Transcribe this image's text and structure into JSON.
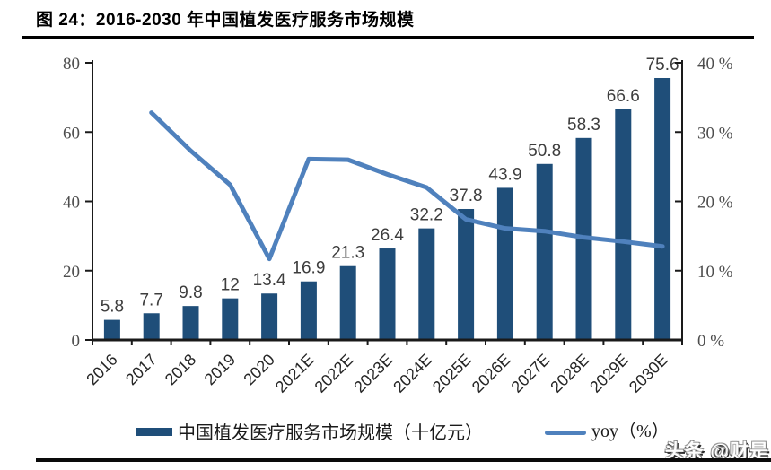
{
  "title": "图 24：2016-2030 年中国植发医疗服务市场规模",
  "colors": {
    "bar": "#1F4E79",
    "line": "#4F81BD",
    "axis": "#1A1A1A",
    "axis_label": "#4D4D4D",
    "x_label": "#262626",
    "data_label": "#3D3D3D"
  },
  "chart_data": {
    "type": "bar",
    "combo": "bar+line",
    "title": "2016-2030 年中国植发医疗服务市场规模",
    "categories": [
      "2016",
      "2017",
      "2018",
      "2019",
      "2020",
      "2021E",
      "2022E",
      "2023E",
      "2024E",
      "2025E",
      "2026E",
      "2027E",
      "2028E",
      "2029E",
      "2030E"
    ],
    "series": [
      {
        "name": "中国植发医疗服务市场规模（十亿元）",
        "type": "bar",
        "axis": "left",
        "values": [
          5.8,
          7.7,
          9.8,
          12,
          13.4,
          16.9,
          21.3,
          26.4,
          32.2,
          37.8,
          43.9,
          50.8,
          58.3,
          66.6,
          75.6
        ],
        "labels": [
          "5.8",
          "7.7",
          "9.8",
          "12",
          "13.4",
          "16.9",
          "21.3",
          "26.4",
          "32.2",
          "37.8",
          "43.9",
          "50.8",
          "58.3",
          "66.6",
          "75.6"
        ]
      },
      {
        "name": "yoy（%）",
        "type": "line",
        "axis": "right",
        "values": [
          null,
          32.8,
          27.3,
          22.4,
          11.7,
          26.1,
          26.0,
          23.9,
          22.0,
          17.4,
          16.1,
          15.7,
          14.8,
          14.2,
          13.5
        ]
      }
    ],
    "left_axis": {
      "ticks": [
        0,
        20,
        40,
        60,
        80
      ],
      "range": [
        0,
        80
      ]
    },
    "right_axis": {
      "tick_labels": [
        "0 %",
        "10 %",
        "20 %",
        "30 %",
        "40 %"
      ],
      "tick_values": [
        0,
        10,
        20,
        30,
        40
      ],
      "range": [
        0,
        40
      ]
    },
    "grid": false,
    "legend_position": "bottom"
  },
  "legend": {
    "bar_label": "中国植发医疗服务市场规模（十亿元）",
    "line_label": "yoy（%）"
  },
  "watermark": {
    "text": "头条 @财是"
  }
}
